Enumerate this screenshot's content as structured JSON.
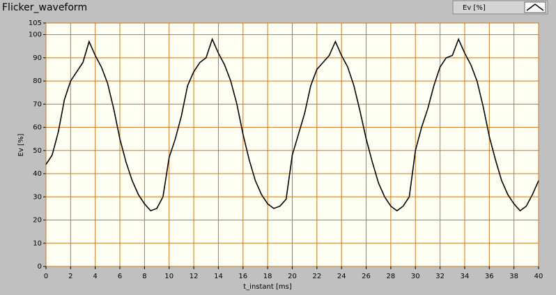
{
  "chart_data": {
    "type": "line",
    "title": "Flicker_waveform",
    "x_label": "t_instant [ms]",
    "y_label": "Ev [%]",
    "x": [
      0,
      0.5,
      1,
      1.5,
      2,
      2.5,
      3,
      3.5,
      4,
      4.5,
      5,
      5.5,
      6,
      6.5,
      7,
      7.5,
      8,
      8.5,
      9,
      9.5,
      10,
      10.5,
      11,
      11.5,
      12,
      12.5,
      13,
      13.5,
      14,
      14.5,
      15,
      15.5,
      16,
      16.5,
      17,
      17.5,
      18,
      18.5,
      19,
      19.5,
      20,
      20.5,
      21,
      21.5,
      22,
      22.5,
      23,
      23.5,
      24,
      24.5,
      25,
      25.5,
      26,
      26.5,
      27,
      27.5,
      28,
      28.5,
      29,
      29.5,
      30,
      30.5,
      31,
      31.5,
      32,
      32.5,
      33,
      33.5,
      34,
      34.5,
      35,
      35.5,
      36,
      36.5,
      37,
      37.5,
      38,
      38.5,
      39,
      39.5,
      40
    ],
    "series": [
      {
        "name": "Ev [%]",
        "color": "#000000",
        "values": [
          44,
          48,
          58,
          72,
          80,
          84,
          88,
          97,
          91,
          86,
          79,
          68,
          55,
          45,
          37,
          31,
          27,
          24,
          25,
          30,
          47,
          55,
          65,
          78,
          84,
          88,
          90,
          98,
          92,
          87,
          80,
          70,
          57,
          46,
          37,
          31,
          27,
          25,
          26,
          29,
          48,
          57,
          66,
          78,
          85,
          88,
          91,
          97,
          91,
          86,
          78,
          67,
          55,
          45,
          36,
          30,
          26,
          24,
          26,
          30,
          50,
          60,
          68,
          78,
          86,
          90,
          91,
          98,
          92,
          87,
          80,
          69,
          56,
          46,
          37,
          31,
          27,
          24,
          26,
          31,
          37
        ]
      }
    ],
    "xlim": [
      0,
      40
    ],
    "xticks": [
      0,
      2,
      4,
      6,
      8,
      10,
      12,
      14,
      16,
      18,
      20,
      22,
      24,
      26,
      28,
      30,
      32,
      34,
      36,
      38,
      40
    ],
    "ylim": [
      0,
      105
    ],
    "yticks": [
      0,
      10,
      20,
      30,
      40,
      50,
      60,
      70,
      80,
      90,
      100,
      105
    ],
    "grid": true,
    "grid_color": "#c8781e",
    "plot_background": "#fffff4"
  }
}
